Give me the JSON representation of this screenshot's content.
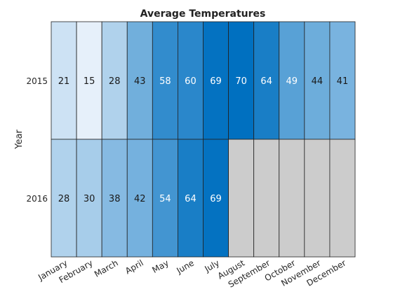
{
  "chart_data": {
    "type": "heatmap",
    "title": "Average Temperatures",
    "xlabel": "",
    "ylabel": "Year",
    "x_categories": [
      "January",
      "February",
      "March",
      "April",
      "May",
      "June",
      "July",
      "August",
      "September",
      "October",
      "November",
      "December"
    ],
    "y_categories": [
      "2015",
      "2016"
    ],
    "values": [
      [
        21,
        15,
        28,
        43,
        58,
        60,
        69,
        70,
        64,
        49,
        44,
        41
      ],
      [
        28,
        30,
        38,
        42,
        54,
        64,
        69,
        null,
        null,
        null,
        null,
        null
      ]
    ],
    "color_range": [
      15,
      70
    ],
    "colors": {
      "low": "#e6f0fa",
      "high": "#0070c0",
      "missing": "#cccccc",
      "grid": "#222222",
      "dark_text": "#1a1a1a",
      "light_text": "#ffffff"
    },
    "grid": true
  }
}
